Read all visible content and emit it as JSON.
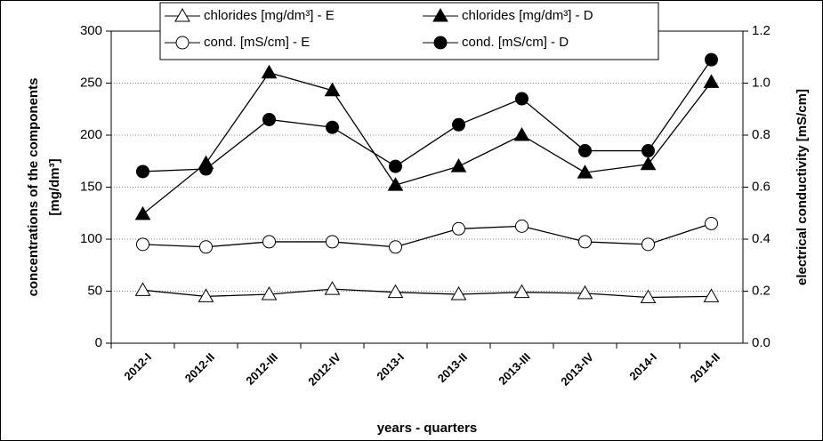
{
  "chart_data": {
    "type": "line",
    "xlabel": "years - quarters",
    "ylabel": [
      "concentrations of the components",
      "[mg/dm³]"
    ],
    "y2label": "electrical conductivity [mS/cm]",
    "categories": [
      "2012-I",
      "2012-II",
      "2012-III",
      "2012-IV",
      "2013-I",
      "2013-II",
      "2013-III",
      "2013-IV",
      "2014-I",
      "2014-II"
    ],
    "ylim": [
      0,
      300
    ],
    "yticks": [
      0,
      50,
      100,
      150,
      200,
      250,
      300
    ],
    "y2lim": [
      0,
      1.2
    ],
    "y2ticks": [
      {
        "value": 0,
        "label": "0.0"
      },
      0.2,
      0.4,
      0.6,
      0.8,
      {
        "value": 1,
        "label": "1.0"
      },
      1.2
    ],
    "grid": true,
    "series": [
      {
        "name": "chlorides [mg/dm³] - E",
        "color": "#000000",
        "marker": "triangle",
        "filled": false,
        "values": [
          51,
          45,
          47,
          52,
          49,
          47,
          49,
          48,
          44,
          45
        ]
      },
      {
        "name": "chlorides [mg/dm³] - D",
        "color": "#000000",
        "marker": "triangle",
        "filled": true,
        "values": [
          124,
          173,
          260,
          243,
          152,
          170,
          200,
          164,
          172,
          251
        ]
      },
      {
        "name": "cond. [mS/cm] - E",
        "color": "#000000",
        "marker": "circle",
        "filled": false,
        "axis": "y2",
        "values": [
          0.38,
          0.37,
          0.39,
          0.39,
          0.37,
          0.44,
          0.45,
          0.39,
          0.38,
          0.46
        ]
      },
      {
        "name": "cond. [mS/cm] - D",
        "color": "#000000",
        "marker": "circle",
        "filled": true,
        "axis": "y2",
        "values": [
          0.66,
          0.67,
          0.86,
          0.83,
          0.68,
          0.84,
          0.94,
          0.74,
          0.74,
          1.09
        ]
      }
    ]
  }
}
